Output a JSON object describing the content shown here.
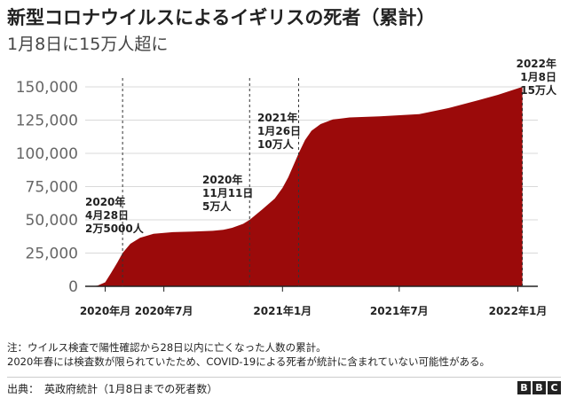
{
  "header": {
    "title": "新型コロナウイルスによるイギリスの死者（累計）",
    "subtitle": "1月8日に15万人超に"
  },
  "footer": {
    "note_line1": "注：ウイルス検査で陽性確認から28日以内に亡くなった人数の累計。",
    "note_line2": "2020年春には検査数が限られていたため、COVID-19による死者が統計に含まれていない可能性がある。",
    "source": "出典：　英政府統計（1月8日までの死者数）",
    "logo_letters": [
      "B",
      "B",
      "C"
    ]
  },
  "colors": {
    "area": "#9b0a0a",
    "grid": "#d9d9d9",
    "axis": "#222222",
    "tick_label": "#666666"
  },
  "chart_data": {
    "type": "area",
    "title": "",
    "xlabel": "",
    "ylabel": "",
    "ylim": [
      0,
      150000
    ],
    "yticks": [
      0,
      25000,
      50000,
      75000,
      100000,
      125000,
      150000
    ],
    "ytick_labels": [
      "0",
      "25,000",
      "50,000",
      "75,000",
      "100,000",
      "125,000",
      "150,000"
    ],
    "xlim": [
      "2020-03-01",
      "2022-01-08"
    ],
    "xticks": [
      {
        "date": "2020-04-01",
        "label": "2020年月"
      },
      {
        "date": "2020-07-01",
        "label": "2020年7月"
      },
      {
        "date": "2021-01-01",
        "label": "2021年1月"
      },
      {
        "date": "2021-07-01",
        "label": "2021年7月"
      },
      {
        "date": "2022-01-01",
        "label": "2022年1月"
      }
    ],
    "grid": true,
    "series": [
      {
        "name": "",
        "points": [
          [
            "2020-03-01",
            0
          ],
          [
            "2020-03-10",
            0
          ],
          [
            "2020-03-20",
            500
          ],
          [
            "2020-04-01",
            3000
          ],
          [
            "2020-04-10",
            10000
          ],
          [
            "2020-04-20",
            18000
          ],
          [
            "2020-04-28",
            25000
          ],
          [
            "2020-05-10",
            32000
          ],
          [
            "2020-05-25",
            36500
          ],
          [
            "2020-06-15",
            39500
          ],
          [
            "2020-07-15",
            40700
          ],
          [
            "2020-08-15",
            41200
          ],
          [
            "2020-09-15",
            41700
          ],
          [
            "2020-10-01",
            42500
          ],
          [
            "2020-10-15",
            44000
          ],
          [
            "2020-11-01",
            47000
          ],
          [
            "2020-11-11",
            50000
          ],
          [
            "2020-12-01",
            58000
          ],
          [
            "2020-12-20",
            66000
          ],
          [
            "2021-01-01",
            74000
          ],
          [
            "2021-01-10",
            82000
          ],
          [
            "2021-01-26",
            100000
          ],
          [
            "2021-02-05",
            110000
          ],
          [
            "2021-02-15",
            117000
          ],
          [
            "2021-03-01",
            122000
          ],
          [
            "2021-03-20",
            125500
          ],
          [
            "2021-04-15",
            127000
          ],
          [
            "2021-06-01",
            127800
          ],
          [
            "2021-08-01",
            129500
          ],
          [
            "2021-09-15",
            134000
          ],
          [
            "2021-11-01",
            140000
          ],
          [
            "2021-12-01",
            144000
          ],
          [
            "2021-12-20",
            147000
          ],
          [
            "2022-01-08",
            150000
          ]
        ]
      }
    ],
    "annotations": [
      {
        "date": "2020-04-28",
        "lines": [
          "2020年",
          "4月28日",
          "2万5000人"
        ]
      },
      {
        "date": "2020-11-11",
        "lines": [
          "2020年",
          "11月11日",
          "5万人"
        ]
      },
      {
        "date": "2021-01-26",
        "lines": [
          "2021年",
          "1月26日",
          "10万人"
        ]
      },
      {
        "date": "2022-01-08",
        "lines": [
          "2022年",
          "1月8日",
          "15万人"
        ]
      }
    ]
  }
}
